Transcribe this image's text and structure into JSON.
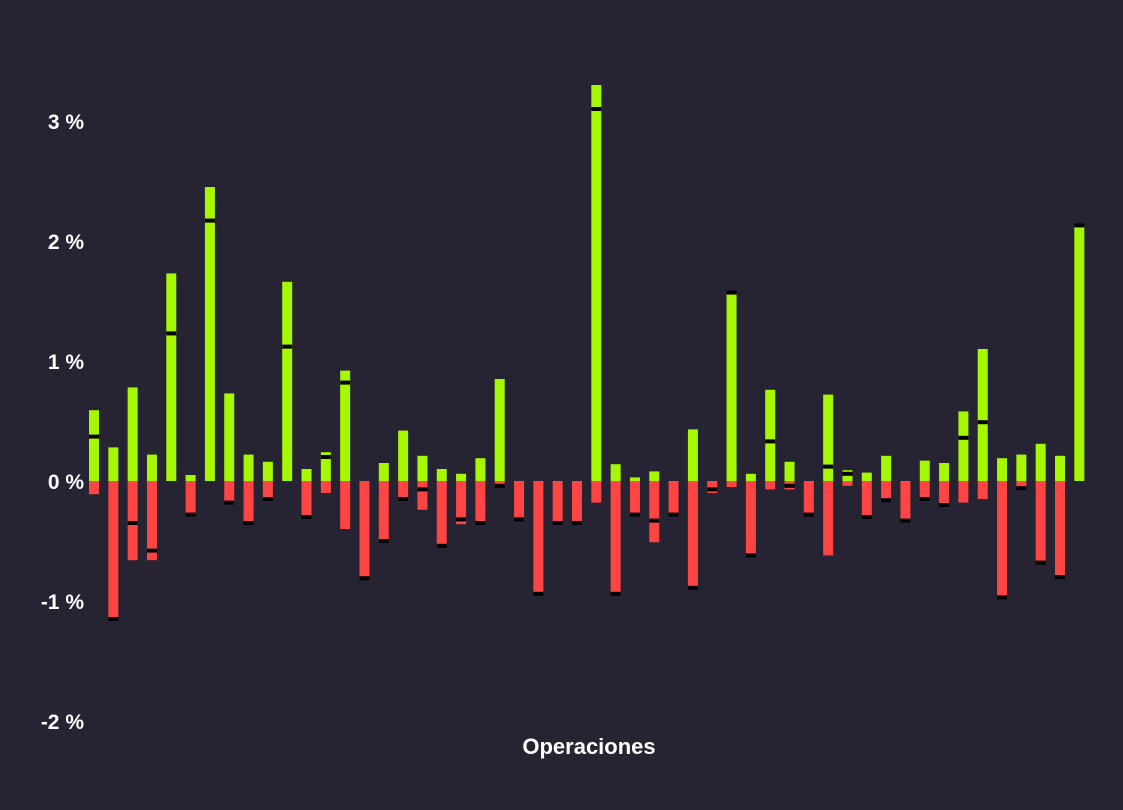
{
  "colors": {
    "background": "#262433",
    "gain": "#a6f800",
    "loss": "#ff4444",
    "marker": "#000000"
  },
  "chart_data": {
    "type": "bar",
    "description_of_series": "Each bar is one operation: max favorable excursion (gain) above zero, max adverse excursion (loss) below zero, and a black marker at the final result.",
    "xlabel": "Operaciones",
    "ylabel": "",
    "ylim": [
      -2,
      3.3
    ],
    "yticks": [
      3,
      2,
      1,
      0,
      -1,
      -2
    ],
    "ytick_labels": [
      "3 %",
      "2 %",
      "1 %",
      "0 %",
      "-1 %",
      "-2 %"
    ],
    "grid": false,
    "operations": [
      {
        "up": 0.59,
        "down": -0.11,
        "result": 0.37
      },
      {
        "up": 0.28,
        "down": -1.15,
        "result": -1.15
      },
      {
        "up": 0.78,
        "down": -0.66,
        "result": -0.35
      },
      {
        "up": 0.22,
        "down": -0.66,
        "result": -0.58
      },
      {
        "up": 1.73,
        "down": 0.0,
        "result": 1.23
      },
      {
        "up": 0.05,
        "down": -0.28,
        "result": -0.28
      },
      {
        "up": 2.45,
        "down": 0.0,
        "result": 2.17
      },
      {
        "up": 0.73,
        "down": -0.18,
        "result": -0.18
      },
      {
        "up": 0.22,
        "down": -0.35,
        "result": -0.35
      },
      {
        "up": 0.16,
        "down": -0.15,
        "result": -0.15
      },
      {
        "up": 1.66,
        "down": 0.0,
        "result": 1.12
      },
      {
        "up": 0.1,
        "down": -0.3,
        "result": -0.3
      },
      {
        "up": 0.24,
        "down": -0.1,
        "result": 0.2
      },
      {
        "up": 0.92,
        "down": -0.4,
        "result": 0.82
      },
      {
        "up": 0.0,
        "down": -0.81,
        "result": -0.81
      },
      {
        "up": 0.15,
        "down": -0.5,
        "result": -0.5
      },
      {
        "up": 0.42,
        "down": -0.15,
        "result": -0.15
      },
      {
        "up": 0.21,
        "down": -0.24,
        "result": -0.07
      },
      {
        "up": 0.1,
        "down": -0.54,
        "result": -0.54
      },
      {
        "up": 0.06,
        "down": -0.36,
        "result": -0.32
      },
      {
        "up": 0.19,
        "down": -0.35,
        "result": -0.35
      },
      {
        "up": 0.85,
        "down": -0.04,
        "result": -0.04
      },
      {
        "up": 0.0,
        "down": -0.32,
        "result": -0.32
      },
      {
        "up": 0.0,
        "down": -0.94,
        "result": -0.94
      },
      {
        "up": 0.0,
        "down": -0.35,
        "result": -0.35
      },
      {
        "up": 0.0,
        "down": -0.35,
        "result": -0.35
      },
      {
        "up": 3.3,
        "down": -0.18,
        "result": 3.1
      },
      {
        "up": 0.14,
        "down": -0.94,
        "result": -0.94
      },
      {
        "up": 0.03,
        "down": -0.28,
        "result": -0.28
      },
      {
        "up": 0.08,
        "down": -0.51,
        "result": -0.33
      },
      {
        "up": 0.0,
        "down": -0.28,
        "result": -0.28
      },
      {
        "up": 0.43,
        "down": -0.89,
        "result": -0.89
      },
      {
        "up": 0.0,
        "down": -0.1,
        "result": -0.07
      },
      {
        "up": 1.57,
        "down": -0.05,
        "result": 1.57
      },
      {
        "up": 0.06,
        "down": -0.62,
        "result": -0.62
      },
      {
        "up": 0.76,
        "down": -0.07,
        "result": 0.33
      },
      {
        "up": 0.16,
        "down": -0.07,
        "result": -0.04
      },
      {
        "up": 0.0,
        "down": -0.28,
        "result": -0.28
      },
      {
        "up": 0.72,
        "down": -0.62,
        "result": 0.12
      },
      {
        "up": 0.09,
        "down": -0.04,
        "result": 0.06
      },
      {
        "up": 0.07,
        "down": -0.3,
        "result": -0.3
      },
      {
        "up": 0.21,
        "down": -0.16,
        "result": -0.16
      },
      {
        "up": 0.0,
        "down": -0.33,
        "result": -0.33
      },
      {
        "up": 0.17,
        "down": -0.15,
        "result": -0.15
      },
      {
        "up": 0.15,
        "down": -0.2,
        "result": -0.2
      },
      {
        "up": 0.58,
        "down": -0.18,
        "result": 0.36
      },
      {
        "up": 1.1,
        "down": -0.15,
        "result": 0.49
      },
      {
        "up": 0.19,
        "down": -0.97,
        "result": -0.97
      },
      {
        "up": 0.22,
        "down": -0.06,
        "result": -0.06
      },
      {
        "up": 0.31,
        "down": -0.68,
        "result": -0.68
      },
      {
        "up": 0.21,
        "down": -0.8,
        "result": -0.8
      },
      {
        "up": 2.13,
        "down": 0.0,
        "result": 2.13
      }
    ]
  }
}
